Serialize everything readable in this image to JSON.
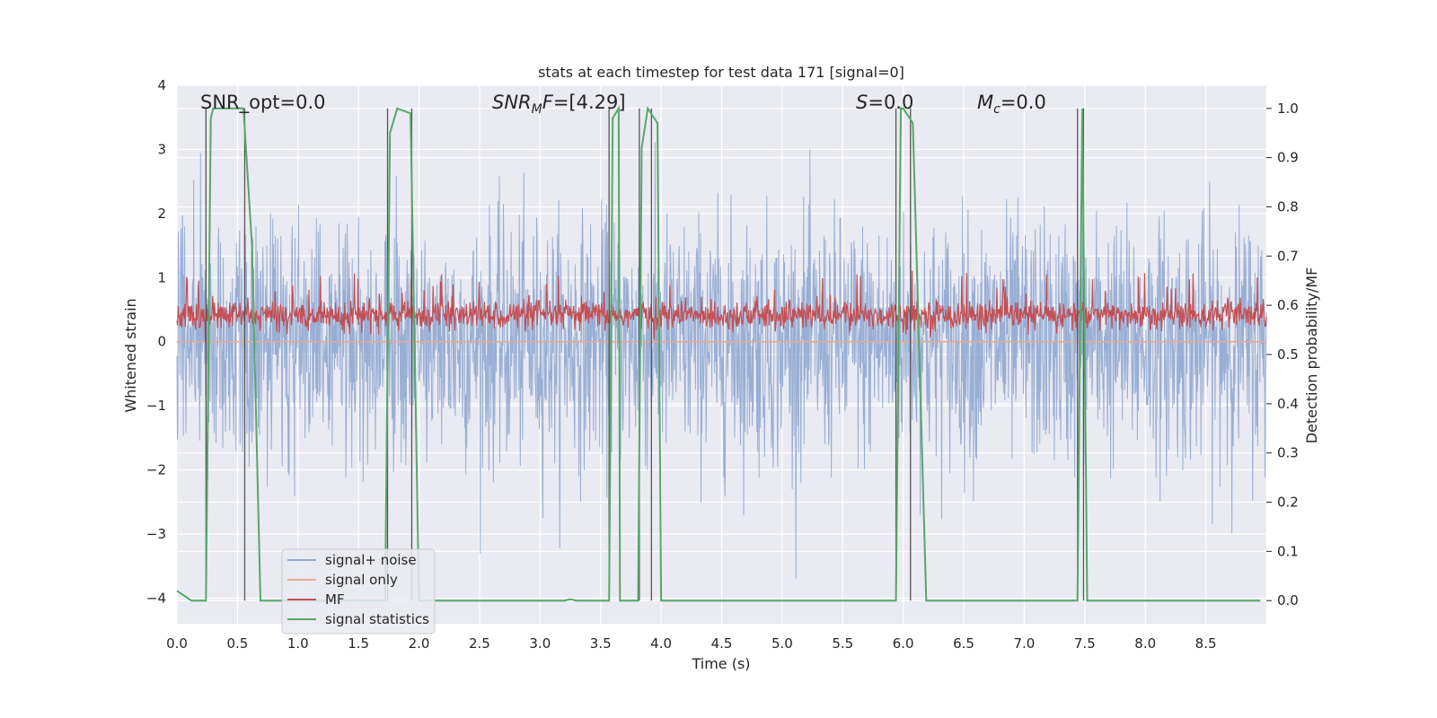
{
  "chart_data": {
    "type": "line",
    "title": "stats at each timestep for test data 171 [signal=0]",
    "xlabel": "Time (s)",
    "ylabel": "Whitened strain",
    "y2label": "Detection probability/MF",
    "xlim": [
      0,
      9.0
    ],
    "ylim": [
      -4.4,
      4.0
    ],
    "y2lim": [
      -0.047,
      1.047
    ],
    "x_ticks": [
      0.0,
      0.5,
      1.0,
      1.5,
      2.0,
      2.5,
      3.0,
      3.5,
      4.0,
      4.5,
      5.0,
      5.5,
      6.0,
      6.5,
      7.0,
      7.5,
      8.0,
      8.5
    ],
    "x_tick_labels": [
      "0.0",
      "0.5",
      "1.0",
      "1.5",
      "2.0",
      "2.5",
      "3.0",
      "3.5",
      "4.0",
      "4.5",
      "5.0",
      "5.5",
      "6.0",
      "6.5",
      "7.0",
      "7.5",
      "8.0",
      "8.5"
    ],
    "y_ticks": [
      4,
      3,
      2,
      1,
      0,
      -1,
      -2,
      -3,
      -4
    ],
    "y_tick_labels": [
      "4",
      "3",
      "2",
      "1",
      "0",
      "−1",
      "−2",
      "−3",
      "−4"
    ],
    "y2_ticks": [
      1.0,
      0.9,
      0.8,
      0.7,
      0.6,
      0.5,
      0.4,
      0.3,
      0.2,
      0.1,
      0.0
    ],
    "y2_tick_labels": [
      "1.0",
      "0.9",
      "0.8",
      "0.7",
      "0.6",
      "0.5",
      "0.4",
      "0.3",
      "0.2",
      "0.1",
      "0.0"
    ],
    "grid": true,
    "legend_position": "lower-left",
    "annotations": {
      "snr_opt": "SNR_opt=0.0",
      "snr_mf_main": "SNR",
      "snr_mf_sub": "M",
      "snr_mf_rest": "F=[4.29]",
      "s_main": "S",
      "s_rest": "=0.0",
      "mc_main": "M",
      "mc_sub": "c",
      "mc_rest": "=0.0"
    },
    "series": [
      {
        "name": "signal+ noise",
        "color": "#8fa7d0",
        "kind": "noise",
        "amplitude_sd": 0.95,
        "peak_range": [
          -3.7,
          3.6
        ]
      },
      {
        "name": "signal only",
        "color": "#e8a98f",
        "values_constant": 0.0
      },
      {
        "name": "MF",
        "color": "#c44e52",
        "kind": "noise",
        "range_right_axis": [
          0.53,
          0.63
        ]
      },
      {
        "name": "signal statistics",
        "color": "#55a868",
        "x": [
          0.0,
          0.12,
          0.24,
          0.28,
          0.3,
          0.55,
          0.62,
          0.69,
          1.72,
          1.76,
          1.82,
          1.93,
          2.0,
          3.2,
          3.25,
          3.3,
          3.57,
          3.6,
          3.65,
          3.66,
          3.81,
          3.84,
          3.89,
          3.97,
          4.0,
          5.94,
          5.98,
          6.0,
          6.08,
          6.19,
          7.44,
          7.48,
          7.52,
          7.53,
          8.95
        ],
        "values": [
          0.02,
          0.0,
          0.0,
          0.98,
          1.0,
          1.0,
          0.72,
          0.0,
          0.0,
          0.95,
          1.0,
          0.99,
          0.0,
          0.0,
          0.003,
          0.0,
          0.0,
          0.98,
          1.0,
          0.0,
          0.0,
          0.92,
          1.0,
          0.97,
          0.0,
          0.0,
          1.0,
          1.0,
          0.97,
          0.0,
          0.0,
          1.0,
          0.0,
          0.0,
          0.0
        ]
      }
    ],
    "vertical_markers": [
      0.24,
      0.56,
      1.74,
      1.94,
      3.57,
      3.82,
      3.92,
      5.94,
      6.06,
      7.44,
      7.49
    ]
  }
}
